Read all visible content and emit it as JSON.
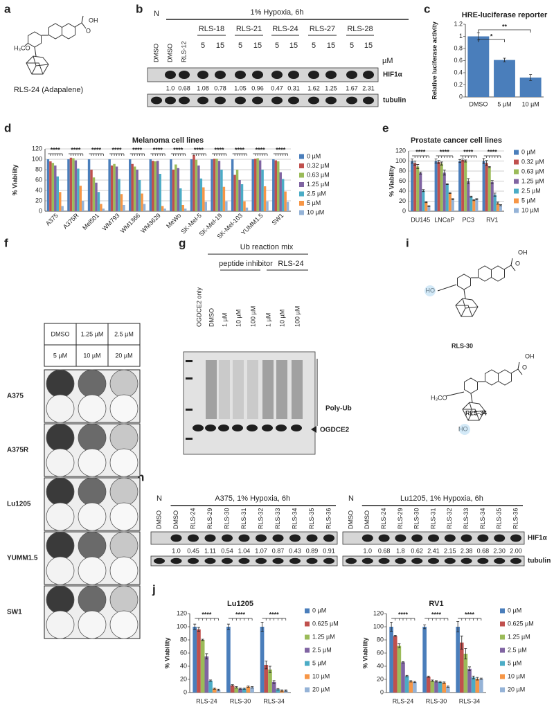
{
  "panel_labels": [
    "a",
    "b",
    "c",
    "d",
    "e",
    "f",
    "g",
    "h",
    "i",
    "j"
  ],
  "structure_a": {
    "caption": "RLS-24 (Adapalene)",
    "groups": [
      "OH",
      "O",
      "H₃CO"
    ]
  },
  "blot_b": {
    "n_label": "N",
    "condition": "1% Hypoxia, 6h",
    "lanes": [
      "DMSO",
      "DMSO",
      "RLS-12"
    ],
    "groups": [
      {
        "name": "RLS-18",
        "doses": [
          "5",
          "15"
        ]
      },
      {
        "name": "RLS-21",
        "doses": [
          "5",
          "15"
        ]
      },
      {
        "name": "RLS-24",
        "doses": [
          "5",
          "15"
        ]
      },
      {
        "name": "RLS-27",
        "doses": [
          "5",
          "15"
        ]
      },
      {
        "name": "RLS-28",
        "doses": [
          "5",
          "15"
        ]
      }
    ],
    "unit": "µM",
    "bands": [
      "HIF1α",
      "tubulin"
    ],
    "quantification": [
      "1.0",
      "0.68",
      "1.08",
      "0.78",
      "1.05",
      "0.96",
      "0.47",
      "0.31",
      "1.62",
      "1.25",
      "1.67",
      "2.31"
    ]
  },
  "chart_data": [
    {
      "type": "bar",
      "title": "HRE-luciferase reporter",
      "ylabel": "Relative luciferase activity",
      "categories": [
        "DMSO",
        "5 µM",
        "10 µM"
      ],
      "values": [
        1.0,
        0.61,
        0.32
      ],
      "errors": [
        0.06,
        0.03,
        0.05
      ],
      "color": "#4a7ebb",
      "ylim": [
        0,
        1.2
      ],
      "yticks": [
        0,
        0.2,
        0.4,
        0.6,
        0.8,
        1,
        1.2
      ],
      "grid": false,
      "annotations": [
        "*",
        "**"
      ]
    },
    {
      "type": "bar",
      "title": "Melanoma cell lines",
      "ylabel": "% Viability",
      "categories": [
        "A375",
        "A375R",
        "Mel501",
        "WM793",
        "WM1366",
        "WM3629",
        "MeWo",
        "SK-Mel-5",
        "SK-Mel-19",
        "SK-Mel-103",
        "YUMM1.5",
        "SW1"
      ],
      "xtick_rotation": 45,
      "ylim": [
        0,
        120
      ],
      "yticks": [
        0,
        20,
        40,
        60,
        80,
        100,
        120
      ],
      "grid": true,
      "legend": "right",
      "annotations": [
        "****",
        "****",
        "****",
        "****",
        "****",
        "****",
        "****",
        "****",
        "****",
        "****",
        "****",
        "****"
      ],
      "series": [
        {
          "name": "0 µM",
          "color": "#4a7ebb",
          "values": [
            100,
            100,
            100,
            100,
            100,
            100,
            100,
            100,
            100,
            100,
            100,
            100
          ]
        },
        {
          "name": "0.32 µM",
          "color": "#c0504d",
          "values": [
            96,
            103,
            80,
            88,
            91,
            97,
            80,
            108,
            101,
            70,
            101,
            98
          ]
        },
        {
          "name": "0.63 µM",
          "color": "#9bbb59",
          "values": [
            93,
            102,
            65,
            91,
            86,
            96,
            90,
            99,
            101,
            80,
            102,
            96
          ]
        },
        {
          "name": "1.25 µM",
          "color": "#8064a2",
          "values": [
            88,
            98,
            55,
            86,
            80,
            97,
            83,
            88,
            97,
            60,
            98,
            75
          ]
        },
        {
          "name": "2.5 µM",
          "color": "#4bacc6",
          "values": [
            67,
            82,
            37,
            62,
            60,
            72,
            44,
            63,
            80,
            52,
            80,
            62
          ]
        },
        {
          "name": "5 µM",
          "color": "#f79646",
          "values": [
            37,
            49,
            14,
            33,
            34,
            10,
            12,
            46,
            47,
            19,
            48,
            38
          ]
        },
        {
          "name": "10 µM",
          "color": "#95b3d7",
          "values": [
            10,
            20,
            5,
            12,
            14,
            5,
            5,
            18,
            19,
            7,
            19,
            18
          ]
        }
      ]
    },
    {
      "type": "bar",
      "title": "Prostate cancer cell lines",
      "ylabel": "% Viability",
      "categories": [
        "DU145",
        "LNCaP",
        "PC3",
        "RV1"
      ],
      "ylim": [
        0,
        120
      ],
      "yticks": [
        0,
        20,
        40,
        60,
        80,
        100,
        120
      ],
      "grid": true,
      "legend": "right",
      "annotations": [
        "****",
        "****",
        "****",
        "****"
      ],
      "series": [
        {
          "name": "0 µM",
          "color": "#4a7ebb",
          "values": [
            100,
            100,
            100,
            100
          ],
          "errors": [
            4,
            4,
            3,
            5
          ]
        },
        {
          "name": "0.32 µM",
          "color": "#c0504d",
          "values": [
            96,
            98,
            102,
            96
          ],
          "errors": [
            4,
            3,
            2,
            5
          ]
        },
        {
          "name": "0.63 µM",
          "color": "#9bbb59",
          "values": [
            89,
            95,
            100,
            88
          ],
          "errors": [
            4,
            3,
            2,
            1
          ]
        },
        {
          "name": "1.25 µM",
          "color": "#8064a2",
          "values": [
            76,
            77,
            60,
            58
          ],
          "errors": [
            2,
            5,
            5,
            3
          ]
        },
        {
          "name": "2.5 µM",
          "color": "#4bacc6",
          "values": [
            41,
            54,
            29,
            33
          ],
          "errors": [
            2,
            1,
            1,
            3
          ]
        },
        {
          "name": "5 µM",
          "color": "#f79646",
          "values": [
            18,
            36,
            22,
            16
          ],
          "errors": [
            1,
            1,
            1,
            2
          ]
        },
        {
          "name": "10 µM",
          "color": "#95b3d7",
          "values": [
            10,
            24,
            24,
            12
          ],
          "errors": [
            1,
            1,
            1,
            1
          ]
        }
      ]
    },
    {
      "type": "bar",
      "title": "Lu1205",
      "ylabel": "% Viability",
      "categories": [
        "RLS-24",
        "RLS-30",
        "RLS-34"
      ],
      "ylim": [
        0,
        120
      ],
      "yticks": [
        0,
        20,
        40,
        60,
        80,
        100,
        120
      ],
      "grid": false,
      "legend": "right",
      "annotations": [
        "****",
        "****",
        "****"
      ],
      "series": [
        {
          "name": "0 µM",
          "color": "#4a7ebb",
          "values": [
            100,
            100,
            100
          ],
          "errors": [
            4,
            4,
            7
          ]
        },
        {
          "name": "0.625 µM",
          "color": "#c0504d",
          "values": [
            96,
            11,
            42
          ],
          "errors": [
            3,
            1,
            6
          ]
        },
        {
          "name": "1.25 µM",
          "color": "#9bbb59",
          "values": [
            80,
            8,
            35
          ],
          "errors": [
            1,
            1,
            5
          ]
        },
        {
          "name": "2.5 µM",
          "color": "#8064a2",
          "values": [
            55,
            6,
            16
          ],
          "errors": [
            4,
            1,
            2
          ]
        },
        {
          "name": "5 µM",
          "color": "#4bacc6",
          "values": [
            18,
            6,
            5
          ],
          "errors": [
            1,
            1,
            1
          ]
        },
        {
          "name": "10 µM",
          "color": "#f79646",
          "values": [
            6,
            9,
            3
          ],
          "errors": [
            1,
            1,
            1
          ]
        },
        {
          "name": "20 µM",
          "color": "#95b3d7",
          "values": [
            4,
            8,
            3
          ],
          "errors": [
            1,
            1,
            1
          ]
        }
      ]
    },
    {
      "type": "bar",
      "title": "RV1",
      "ylabel": "% Viability",
      "categories": [
        "RLS-24",
        "RLS-30",
        "RLS-34"
      ],
      "ylim": [
        0,
        120
      ],
      "yticks": [
        0,
        20,
        40,
        60,
        80,
        100,
        120
      ],
      "grid": false,
      "legend": "right",
      "annotations": [
        "****",
        "****",
        "****"
      ],
      "series": [
        {
          "name": "0 µM",
          "color": "#4a7ebb",
          "values": [
            100,
            100,
            100
          ],
          "errors": [
            7,
            3,
            8
          ]
        },
        {
          "name": "0.625 µM",
          "color": "#c0504d",
          "values": [
            86,
            24,
            76
          ],
          "errors": [
            1,
            1,
            10
          ]
        },
        {
          "name": "1.25 µM",
          "color": "#9bbb59",
          "values": [
            71,
            18,
            59
          ],
          "errors": [
            3,
            1,
            8
          ]
        },
        {
          "name": "2.5 µM",
          "color": "#8064a2",
          "values": [
            46,
            17,
            36
          ],
          "errors": [
            1,
            1,
            3
          ]
        },
        {
          "name": "5 µM",
          "color": "#4bacc6",
          "values": [
            25,
            16,
            23
          ],
          "errors": [
            1,
            1,
            2
          ]
        },
        {
          "name": "10 µM",
          "color": "#f79646",
          "values": [
            17,
            15,
            21
          ],
          "errors": [
            1,
            1,
            2
          ]
        },
        {
          "name": "20 µM",
          "color": "#95b3d7",
          "values": [
            16,
            9,
            21
          ],
          "errors": [
            1,
            1,
            1
          ]
        }
      ]
    }
  ],
  "colony_f": {
    "plate_table": [
      [
        "DMSO",
        "1.25 µM",
        "2.5 µM"
      ],
      [
        "5 µM",
        "10 µM",
        "20 µM"
      ]
    ],
    "cell_lines": [
      "A375",
      "A375R",
      "Lu1205",
      "YUMM1.5",
      "SW1"
    ]
  },
  "blot_g": {
    "top_label": "Ub reaction mix",
    "groups": [
      "peptide inhibitor",
      "RLS-24"
    ],
    "lanes": [
      "OGDCE2  only",
      "DMSO",
      "1 µM",
      "10 µM",
      "100 µM",
      "1 µM",
      "10 µM",
      "100 µM"
    ],
    "annotations": [
      "Poly-Ub",
      "OGDCE2"
    ]
  },
  "structures_i": [
    {
      "name": "RLS-30",
      "groups": [
        "HO",
        "OH",
        "O"
      ]
    },
    {
      "name": "RLS-34",
      "groups": [
        "H₃CO",
        "HO",
        "OH",
        "O"
      ]
    }
  ],
  "blot_h": {
    "bands": [
      "HIF1α",
      "tubulin"
    ],
    "blots": [
      {
        "n_label": "N",
        "condition": "A375, 1% Hypoxia, 6h",
        "lanes": [
          "DMSO",
          "DMSO",
          "RLS-24",
          "RLS-29",
          "RLS-30",
          "RLS-31",
          "RLS-32",
          "RLS-33",
          "RLS-34",
          "RLS-35",
          "RLS-36"
        ],
        "quantification": [
          "1.0",
          "0.45",
          "1.11",
          "0.54",
          "1.04",
          "1.07",
          "0.87",
          "0.43",
          "0.89",
          "0.91"
        ]
      },
      {
        "n_label": "N",
        "condition": "Lu1205, 1% Hypoxia, 6h",
        "lanes": [
          "DMSO",
          "DMSO",
          "RLS-24",
          "RLS-29",
          "RLS-30",
          "RLS-31",
          "RLS-32",
          "RLS-33",
          "RLS-34",
          "RLS-35",
          "RLS-36"
        ],
        "quantification": [
          "1.0",
          "0.68",
          "1.8",
          "0.62",
          "2.41",
          "2.15",
          "2.38",
          "0.68",
          "2.30",
          "2.00"
        ]
      }
    ]
  }
}
